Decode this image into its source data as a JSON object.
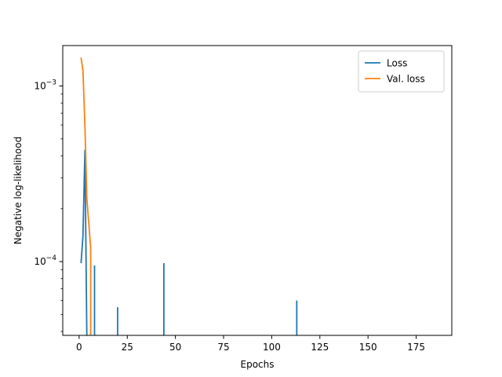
{
  "chart_data": {
    "type": "line",
    "title": "",
    "xlabel": "Epochs",
    "ylabel": "Negative log-likelihood",
    "yscale": "log",
    "xlim": [
      -8.5,
      193.5
    ],
    "ylim": [
      3.8e-05,
      0.0017
    ],
    "x_ticks": [
      0,
      25,
      50,
      75,
      100,
      125,
      150,
      175
    ],
    "x_tick_labels": [
      "0",
      "25",
      "50",
      "75",
      "100",
      "125",
      "150",
      "175"
    ],
    "y_major_ticks": [
      0.0001,
      0.001
    ],
    "y_major_tick_labels": [
      {
        "base": "10",
        "exp": "−4"
      },
      {
        "base": "10",
        "exp": "−3"
      }
    ],
    "y_minor_ticks": [
      4e-05,
      5e-05,
      6e-05,
      7e-05,
      8e-05,
      9e-05,
      0.0002,
      0.0003,
      0.0004,
      0.0005,
      0.0006,
      0.0007,
      0.0008,
      0.0009
    ],
    "legend": {
      "placement": "top-right"
    },
    "grid": false,
    "series": [
      {
        "name": "Loss",
        "color": "#1f77b4",
        "segments": [
          [
            [
              1,
              9.8e-05
            ],
            [
              2,
              0.00014
            ],
            [
              3,
              0.00043
            ],
            [
              4,
              3.8e-05
            ]
          ],
          [
            [
              8,
              3.8e-05
            ],
            [
              8,
              9.5e-05
            ]
          ],
          [
            [
              20,
              3.8e-05
            ],
            [
              20,
              5.5e-05
            ]
          ],
          [
            [
              44,
              3.8e-05
            ],
            [
              44,
              9.8e-05
            ]
          ],
          [
            [
              113,
              3.8e-05
            ],
            [
              113,
              6e-05
            ]
          ]
        ]
      },
      {
        "name": "Val. loss",
        "color": "#ff7f0e",
        "segments": [
          [
            [
              1,
              0.00145
            ],
            [
              2,
              0.00122
            ],
            [
              3,
              0.0006
            ],
            [
              4,
              0.00023
            ],
            [
              5,
              0.000165
            ],
            [
              6,
              0.00012
            ],
            [
              6,
              3.8e-05
            ]
          ]
        ]
      }
    ]
  }
}
